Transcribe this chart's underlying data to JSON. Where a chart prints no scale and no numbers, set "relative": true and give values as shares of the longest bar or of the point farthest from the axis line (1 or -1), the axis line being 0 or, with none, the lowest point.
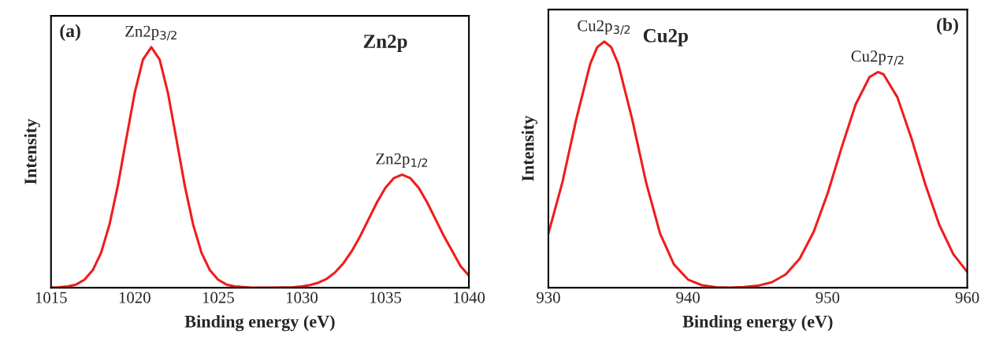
{
  "chart_data": [
    {
      "type": "line",
      "title": "Zn2p",
      "xlabel": "Binding energy (eV)",
      "ylabel": "Intensity",
      "relative": true,
      "xlim": [
        1015,
        1040
      ],
      "xticks": [
        1015,
        1020,
        1025,
        1030,
        1035,
        1040
      ],
      "grid": false,
      "legend": false,
      "marker": "none",
      "line_style": "solid",
      "annotations": [
        "(a)",
        {
          "text": "Zn2p$_{3/2}$",
          "x": 1021,
          "y": 1
        },
        {
          "text": "Zn2p$_{1/2}$",
          "x": 1036,
          "y": 0.47
        }
      ],
      "series": [
        {
          "color": "#f01c1c",
          "x": [
            1015,
            1015.5,
            1016,
            1016.5,
            1017,
            1017.5,
            1018,
            1018.5,
            1019,
            1019.5,
            1020,
            1020.5,
            1021,
            1021.5,
            1022,
            1022.5,
            1023,
            1023.5,
            1024,
            1024.5,
            1025,
            1025.5,
            1026,
            1027,
            1028,
            1029,
            1029.5,
            1030,
            1030.5,
            1031,
            1031.5,
            1032,
            1032.5,
            1033,
            1033.5,
            1034,
            1034.5,
            1035,
            1035.5,
            1036,
            1036.5,
            1037,
            1037.5,
            1038,
            1038.5,
            1039,
            1039.5,
            1040
          ],
          "values": [
            0,
            0.002,
            0.005,
            0.013,
            0.033,
            0.073,
            0.146,
            0.263,
            0.425,
            0.618,
            0.808,
            0.948,
            1,
            0.948,
            0.808,
            0.618,
            0.425,
            0.263,
            0.146,
            0.073,
            0.033,
            0.013,
            0.005,
            0,
            0,
            0.001,
            0.002,
            0.005,
            0.011,
            0.021,
            0.037,
            0.064,
            0.102,
            0.153,
            0.215,
            0.285,
            0.355,
            0.415,
            0.455,
            0.47,
            0.455,
            0.415,
            0.355,
            0.285,
            0.215,
            0.153,
            0.09,
            0.05
          ]
        }
      ]
    },
    {
      "type": "line",
      "title": "Cu2p",
      "xlabel": "Binding energy (eV)",
      "ylabel": "Intensity",
      "relative": true,
      "xlim": [
        930,
        960
      ],
      "xticks": [
        930,
        940,
        950,
        960
      ],
      "grid": false,
      "legend": false,
      "marker": "none",
      "line_style": "solid",
      "annotations": [
        "(b)",
        {
          "text": "Cu2p$_{3/2}$",
          "x": 934,
          "y": 1
        },
        {
          "text": "Cu2p$_{7/2}$",
          "x": 953.6,
          "y": 0.876
        }
      ],
      "series": [
        {
          "color": "#f01c1c",
          "x": [
            930,
            931,
            932,
            933,
            933.5,
            934,
            934.5,
            935,
            936,
            937,
            938,
            939,
            940,
            941,
            942,
            943,
            944,
            945,
            946,
            947,
            948,
            949,
            950,
            951,
            952,
            953,
            953.6,
            954,
            955,
            956,
            957,
            958,
            959,
            960
          ],
          "values": [
            0.22,
            0.427,
            0.685,
            0.91,
            0.977,
            1,
            0.977,
            0.91,
            0.685,
            0.427,
            0.22,
            0.094,
            0.033,
            0.01,
            0.002,
            0,
            0.003,
            0.008,
            0.022,
            0.054,
            0.118,
            0.227,
            0.383,
            0.569,
            0.744,
            0.856,
            0.876,
            0.867,
            0.773,
            0.607,
            0.419,
            0.255,
            0.136,
            0.064
          ]
        }
      ]
    }
  ]
}
